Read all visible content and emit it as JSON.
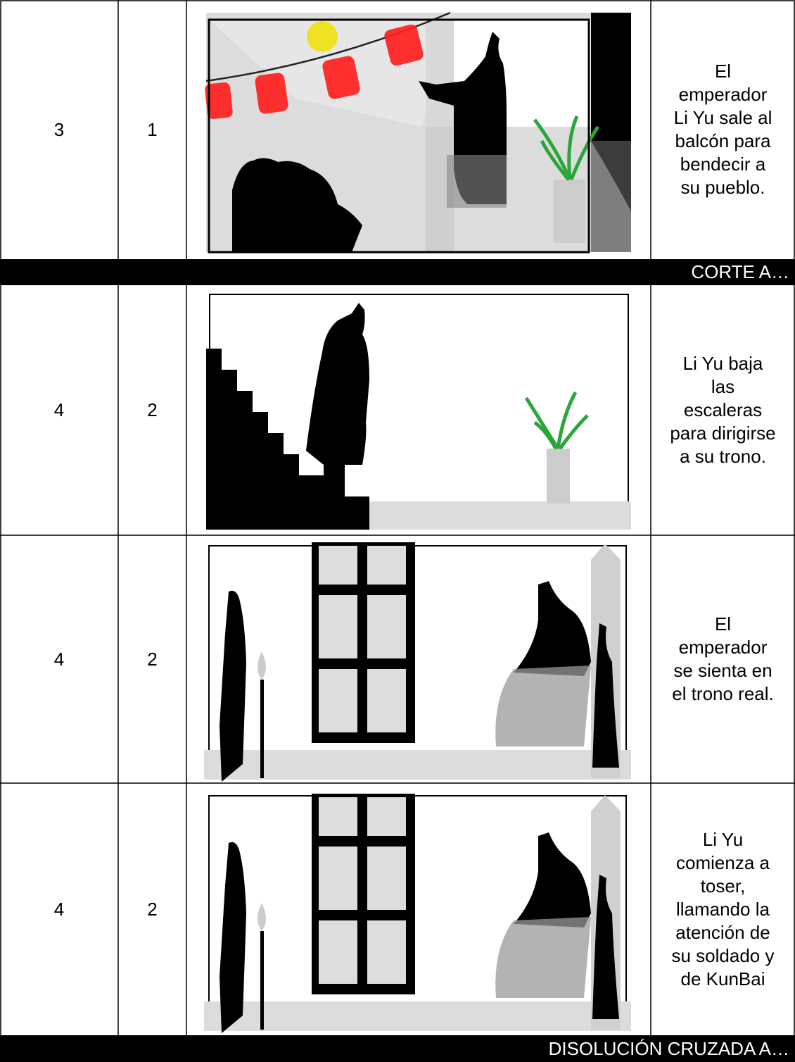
{
  "rows": [
    {
      "scene": "3",
      "shot": "1",
      "description": [
        "El",
        "emperador",
        "Li Yu sale al",
        "balcón para",
        "bendecir a",
        "su pueblo."
      ]
    },
    {
      "transition": "CORTE A…"
    },
    {
      "scene": "4",
      "shot": "2",
      "description": [
        "Li Yu baja",
        "las",
        "escaleras",
        "para dirigirse",
        "a su trono."
      ]
    },
    {
      "scene": "4",
      "shot": "2",
      "description": [
        "El",
        "emperador",
        "se sienta en",
        "el trono real."
      ]
    },
    {
      "scene": "4",
      "shot": "2",
      "description": [
        "Li Yu",
        "comienza a",
        "toser,",
        "llamando la",
        "atención de",
        "su soldado y",
        "de KunBai"
      ]
    },
    {
      "transition": "DISOLUCIÓN CRUZADA A…"
    }
  ]
}
